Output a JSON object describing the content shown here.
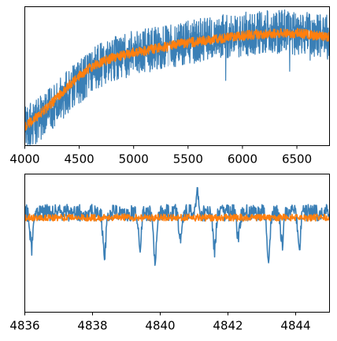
{
  "colors": {
    "series_blue": "#3a7fb6",
    "series_orange": "#ff7f0e",
    "axes": "#000000",
    "background": "#ffffff"
  },
  "chart_data": [
    {
      "type": "line",
      "title": "",
      "xlabel": "",
      "ylabel": "",
      "xlim": [
        4000,
        6800
      ],
      "xticks": [
        4000,
        4500,
        5000,
        5500,
        6000,
        6500
      ],
      "xtick_labels": [
        "4000",
        "4500",
        "5000",
        "5500",
        "6000",
        "6500"
      ],
      "ylim": [
        0,
        1
      ],
      "yticks_shown": false,
      "grid": false,
      "legend": "none",
      "series": [
        {
          "color": "#3a7fb6",
          "x": [
            4000,
            4100,
            4200,
            4300,
            4400,
            4500,
            4600,
            4700,
            4800,
            4900,
            5000,
            5100,
            5200,
            5300,
            5400,
            5500,
            5600,
            5700,
            5800,
            5900,
            6000,
            6100,
            6200,
            6300,
            6400,
            6500,
            6600,
            6700,
            6800
          ],
          "y": [
            0.12,
            0.17,
            0.24,
            0.31,
            0.39,
            0.46,
            0.53,
            0.58,
            0.62,
            0.65,
            0.67,
            0.68,
            0.7,
            0.71,
            0.73,
            0.74,
            0.76,
            0.77,
            0.78,
            0.79,
            0.8,
            0.81,
            0.82,
            0.82,
            0.82,
            0.81,
            0.8,
            0.79,
            0.78
          ],
          "noise_amplitude": 0.16
        },
        {
          "color": "#ff7f0e",
          "x": [
            4000,
            4100,
            4200,
            4300,
            4400,
            4500,
            4600,
            4700,
            4800,
            4900,
            5000,
            5100,
            5200,
            5300,
            5400,
            5500,
            5600,
            5700,
            5800,
            5900,
            6000,
            6100,
            6200,
            6300,
            6400,
            6500,
            6600,
            6700,
            6800
          ],
          "y": [
            0.14,
            0.2,
            0.27,
            0.35,
            0.43,
            0.5,
            0.56,
            0.6,
            0.63,
            0.65,
            0.67,
            0.68,
            0.7,
            0.71,
            0.73,
            0.74,
            0.75,
            0.76,
            0.77,
            0.78,
            0.79,
            0.8,
            0.8,
            0.81,
            0.81,
            0.81,
            0.8,
            0.79,
            0.78
          ],
          "noise_amplitude": 0.035
        }
      ]
    },
    {
      "type": "line",
      "title": "",
      "xlabel": "",
      "ylabel": "",
      "xlim": [
        4836,
        4845
      ],
      "xticks": [
        4836,
        4838,
        4840,
        4842,
        4844
      ],
      "xtick_labels": [
        "4836",
        "4838",
        "4840",
        "4842",
        "4844"
      ],
      "ylim": [
        0,
        1
      ],
      "yticks_shown": false,
      "grid": false,
      "legend": "none",
      "series": [
        {
          "color": "#3a7fb6",
          "baseline": 0.72,
          "noise_amplitude": 0.06,
          "absorption_dips": [
            {
              "x": 4836.2,
              "depth": 0.25
            },
            {
              "x": 4838.35,
              "depth": 0.32
            },
            {
              "x": 4839.4,
              "depth": 0.26
            },
            {
              "x": 4839.85,
              "depth": 0.37
            },
            {
              "x": 4840.6,
              "depth": 0.2
            },
            {
              "x": 4841.6,
              "depth": 0.27
            },
            {
              "x": 4842.3,
              "depth": 0.2
            },
            {
              "x": 4843.2,
              "depth": 0.31
            },
            {
              "x": 4843.6,
              "depth": 0.22
            },
            {
              "x": 4844.1,
              "depth": 0.26
            }
          ],
          "peaks": [
            {
              "x": 4841.1,
              "height": 0.16
            }
          ]
        },
        {
          "color": "#ff7f0e",
          "baseline": 0.685,
          "noise_amplitude": 0.025,
          "absorption_dips": []
        }
      ]
    }
  ]
}
